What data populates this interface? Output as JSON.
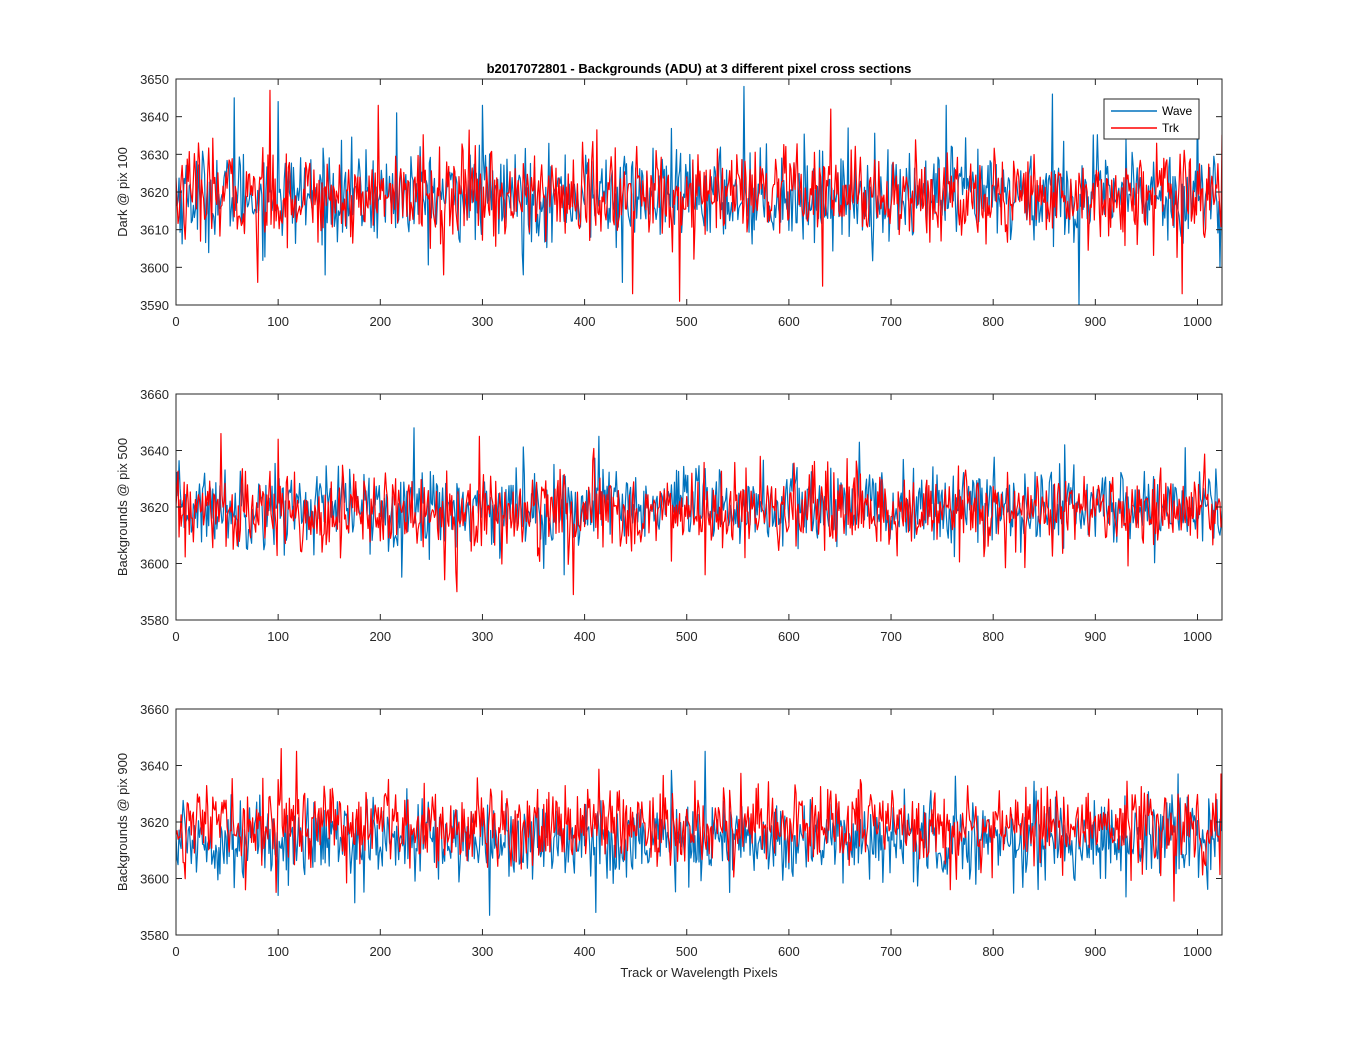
{
  "figure": {
    "title": "b2017072801 - Backgrounds (ADU) at 3 different pixel cross sections",
    "xlabel": "Track or Wavelength Pixels"
  },
  "legend": {
    "wave_label": "Wave",
    "trk_label": "Trk",
    "placement": "top-right of first subplot"
  },
  "colors": {
    "wave": "#0072BD",
    "trk": "#FF0000",
    "axis": "#262626"
  },
  "chart_data": [
    {
      "type": "line",
      "title": "b2017072801 - Backgrounds (ADU) at 3 different pixel cross sections",
      "xlabel": "",
      "ylabel": "Dark @ pix 100",
      "xlim": [
        0,
        1024
      ],
      "ylim": [
        3590,
        3650
      ],
      "xticks": [
        "0",
        "100",
        "200",
        "300",
        "400",
        "500",
        "600",
        "700",
        "800",
        "900",
        "1000"
      ],
      "yticks": [
        "3590",
        "3600",
        "3610",
        "3620",
        "3630",
        "3640",
        "3650"
      ],
      "grid": false,
      "series": [
        {
          "name": "Wave",
          "mean": 3619,
          "noise": 6,
          "spikes": [
            {
              "x": 57,
              "y": 3645
            },
            {
              "x": 100,
              "y": 3644
            },
            {
              "x": 216,
              "y": 3641
            },
            {
              "x": 216,
              "y": 3641
            },
            {
              "x": 300,
              "y": 3643
            },
            {
              "x": 340,
              "y": 3598
            },
            {
              "x": 437,
              "y": 3596
            },
            {
              "x": 556,
              "y": 3648
            },
            {
              "x": 754,
              "y": 3643
            },
            {
              "x": 858,
              "y": 3646
            },
            {
              "x": 884,
              "y": 3590
            },
            {
              "x": 1000,
              "y": 3644
            },
            {
              "x": 1022,
              "y": 3600
            }
          ]
        },
        {
          "name": "Trk",
          "mean": 3619,
          "noise": 6,
          "spikes": [
            {
              "x": 80,
              "y": 3596
            },
            {
              "x": 92,
              "y": 3647
            },
            {
              "x": 198,
              "y": 3643
            },
            {
              "x": 262,
              "y": 3598
            },
            {
              "x": 447,
              "y": 3593
            },
            {
              "x": 493,
              "y": 3591
            },
            {
              "x": 641,
              "y": 3642
            },
            {
              "x": 633,
              "y": 3595
            },
            {
              "x": 985,
              "y": 3593
            }
          ]
        }
      ]
    },
    {
      "type": "line",
      "title": "",
      "xlabel": "",
      "ylabel": "Backgrounds @ pix 500",
      "xlim": [
        0,
        1024
      ],
      "ylim": [
        3580,
        3660
      ],
      "xticks": [
        "0",
        "100",
        "200",
        "300",
        "400",
        "500",
        "600",
        "700",
        "800",
        "900",
        "1000"
      ],
      "yticks": [
        "3580",
        "3600",
        "3620",
        "3640",
        "3660"
      ],
      "grid": false,
      "series": [
        {
          "name": "Wave",
          "mean": 3620,
          "noise": 7,
          "spikes": [
            {
              "x": 233,
              "y": 3648
            },
            {
              "x": 414,
              "y": 3645
            },
            {
              "x": 380,
              "y": 3596
            },
            {
              "x": 870,
              "y": 3642
            }
          ]
        },
        {
          "name": "Trk",
          "mean": 3618,
          "noise": 7,
          "spikes": [
            {
              "x": 44,
              "y": 3646
            },
            {
              "x": 100,
              "y": 3644
            },
            {
              "x": 297,
              "y": 3645
            },
            {
              "x": 275,
              "y": 3590
            },
            {
              "x": 389,
              "y": 3589
            },
            {
              "x": 518,
              "y": 3596
            }
          ]
        }
      ]
    },
    {
      "type": "line",
      "title": "",
      "xlabel": "Track or Wavelength Pixels",
      "ylabel": "Backgrounds @ pix 900",
      "xlim": [
        0,
        1024
      ],
      "ylim": [
        3580,
        3660
      ],
      "xticks": [
        "0",
        "100",
        "200",
        "300",
        "400",
        "500",
        "600",
        "700",
        "800",
        "900",
        "1000"
      ],
      "yticks": [
        "3580",
        "3600",
        "3620",
        "3640",
        "3660"
      ],
      "grid": false,
      "series": [
        {
          "name": "Wave",
          "mean": 3614,
          "noise": 7,
          "spikes": [
            {
              "x": 307,
              "y": 3587
            },
            {
              "x": 411,
              "y": 3588
            },
            {
              "x": 518,
              "y": 3645
            },
            {
              "x": 100,
              "y": 3594
            }
          ]
        },
        {
          "name": "Trk",
          "mean": 3619,
          "noise": 7,
          "spikes": [
            {
              "x": 103,
              "y": 3646
            },
            {
              "x": 118,
              "y": 3645
            },
            {
              "x": 68,
              "y": 3596
            },
            {
              "x": 977,
              "y": 3592
            },
            {
              "x": 1023,
              "y": 3637
            }
          ]
        }
      ]
    }
  ]
}
